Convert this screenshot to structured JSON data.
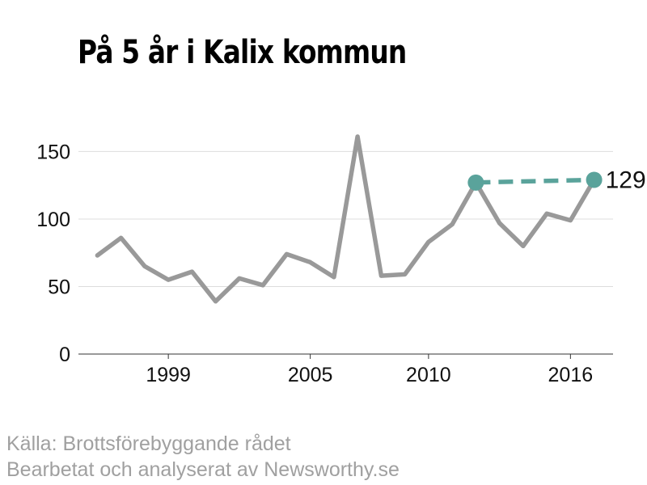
{
  "chart_data": {
    "type": "line",
    "title": "På 5 år i Kalix kommun",
    "xlabel": "",
    "ylabel": "",
    "xlim": [
      1995.2,
      2017.8
    ],
    "ylim": [
      0,
      170
    ],
    "grid": true,
    "x_ticks": [
      1999,
      2005,
      2010,
      2016
    ],
    "y_ticks": [
      0,
      50,
      100,
      150
    ],
    "series": [
      {
        "color": "#999999",
        "style": "solid",
        "x": [
          1996,
          1997,
          1998,
          1999,
          2000,
          2001,
          2002,
          2003,
          2004,
          2005,
          2006,
          2007,
          2008,
          2009,
          2010,
          2011,
          2012,
          2013,
          2014,
          2015,
          2016,
          2017
        ],
        "y": [
          73,
          86,
          65,
          55,
          61,
          39,
          56,
          51,
          74,
          68,
          57,
          161,
          58,
          59,
          83,
          96,
          127,
          97,
          80,
          104,
          99,
          129
        ]
      },
      {
        "color": "#5aa39b",
        "style": "dashed",
        "x": [
          2012,
          2017
        ],
        "y": [
          127,
          129
        ]
      }
    ],
    "end_label": "129"
  },
  "source": {
    "line1": "Källa: Brottsförebyggande rådet",
    "line2": "Bearbetat och analyserat av Newsworthy.se"
  }
}
